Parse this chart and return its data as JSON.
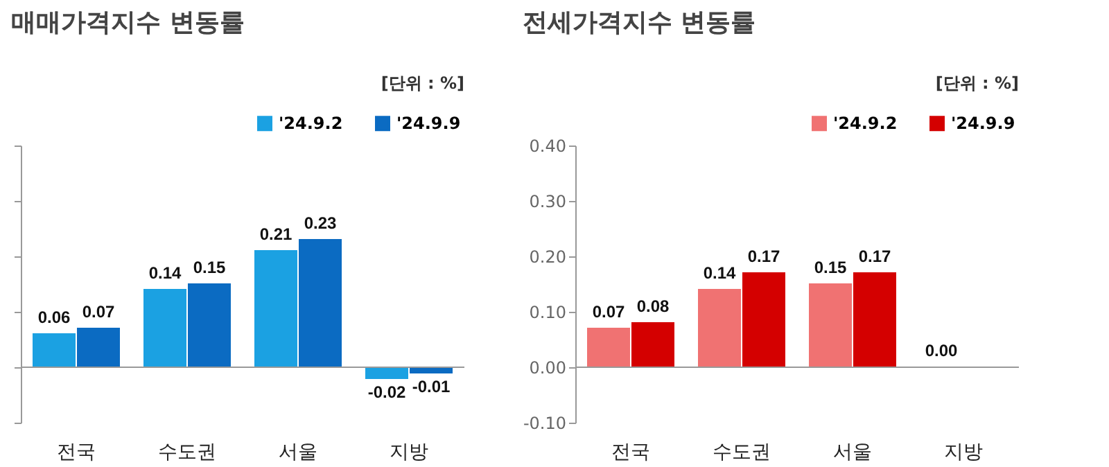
{
  "chart_data": [
    {
      "type": "bar",
      "title": "매매가격지수 변동률",
      "annotations": [
        "[단위 : %]"
      ],
      "categories": [
        "전국",
        "수도권",
        "서울",
        "지방"
      ],
      "series": [
        {
          "name": "'24.9.2",
          "color": "#1ba1e2",
          "values": [
            0.06,
            0.14,
            0.21,
            -0.02
          ],
          "value_labels": [
            "0.06",
            "0.14",
            "0.21",
            "-0.02"
          ]
        },
        {
          "name": "'24.9.9",
          "color": "#0b6bc2",
          "values": [
            0.07,
            0.15,
            0.23,
            -0.01
          ],
          "value_labels": [
            "0.07",
            "0.15",
            "0.23",
            "-0.01"
          ]
        }
      ],
      "ylim": [
        -0.1,
        0.4
      ],
      "yticks": [
        {
          "value": -0.1,
          "label": null
        },
        {
          "value": 0,
          "label": null
        },
        {
          "value": 0.1,
          "label": null
        },
        {
          "value": 0.2,
          "label": null
        },
        {
          "value": 0.3,
          "label": null
        },
        {
          "value": 0.4,
          "label": null
        }
      ],
      "tick_labels": "x",
      "legend": "top right"
    },
    {
      "type": "bar",
      "title": "전세가격지수 변동률",
      "annotations": [
        "[단위 : %]"
      ],
      "categories": [
        "전국",
        "수도권",
        "서울",
        "지방"
      ],
      "series": [
        {
          "name": "'24.9.2",
          "color": "#f07272",
          "values": [
            0.07,
            0.14,
            0.15,
            0.0
          ],
          "value_labels": [
            "0.07",
            "0.14",
            "0.15",
            "0.00"
          ]
        },
        {
          "name": "'24.9.9",
          "color": "#d40000",
          "values": [
            0.08,
            0.17,
            0.17,
            null
          ],
          "value_labels": [
            "0.08",
            "0.17",
            "0.17",
            null
          ]
        }
      ],
      "ylim": [
        -0.1,
        0.4
      ],
      "yticks": [
        {
          "value": -0.1,
          "label": "-0.10"
        },
        {
          "value": 0,
          "label": "0.00"
        },
        {
          "value": 0.1,
          "label": "0.10"
        },
        {
          "value": 0.2,
          "label": "0.20"
        },
        {
          "value": 0.3,
          "label": "0.30"
        },
        {
          "value": 0.4,
          "label": "0.40"
        }
      ],
      "legend": "top right"
    }
  ]
}
